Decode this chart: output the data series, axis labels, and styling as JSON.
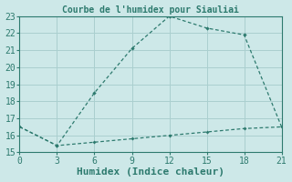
{
  "title": "Courbe de l'humidex pour Siauliai",
  "xlabel": "Humidex (Indice chaleur)",
  "background_color": "#cde8e8",
  "grid_color": "#aacfcf",
  "line_color": "#2d7a6e",
  "xlim": [
    0,
    21
  ],
  "ylim": [
    15,
    23
  ],
  "xticks": [
    0,
    3,
    6,
    9,
    12,
    15,
    18,
    21
  ],
  "yticks": [
    15,
    16,
    17,
    18,
    19,
    20,
    21,
    22,
    23
  ],
  "series1_x": [
    0,
    3,
    6,
    9,
    12,
    15,
    18,
    21
  ],
  "series1_y": [
    16.5,
    15.4,
    18.5,
    21.1,
    23.0,
    22.3,
    21.9,
    16.5
  ],
  "series2_x": [
    0,
    3,
    6,
    9,
    12,
    15,
    18,
    21
  ],
  "series2_y": [
    16.5,
    15.4,
    15.6,
    15.8,
    16.0,
    16.2,
    16.4,
    16.5
  ],
  "title_fontsize": 7,
  "xlabel_fontsize": 8,
  "tick_fontsize": 7
}
